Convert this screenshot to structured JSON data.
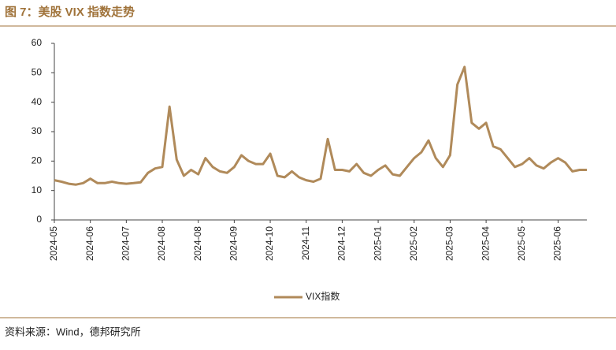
{
  "header": {
    "title": "图 7：美股 VIX 指数走势"
  },
  "chart_data": {
    "type": "line",
    "categories": [
      "2024-05",
      null,
      null,
      null,
      null,
      "2024-06",
      null,
      null,
      null,
      null,
      "2024-07",
      null,
      null,
      null,
      null,
      "2024-08",
      null,
      null,
      null,
      null,
      "2024-08",
      null,
      null,
      null,
      null,
      "2024-09",
      null,
      null,
      null,
      null,
      "2024-10",
      null,
      null,
      null,
      null,
      "2024-11",
      null,
      null,
      null,
      null,
      "2024-12",
      null,
      null,
      null,
      null,
      "2025-01",
      null,
      null,
      null,
      null,
      "2025-02",
      null,
      null,
      null,
      null,
      "2025-03",
      null,
      null,
      null,
      null,
      "2025-04",
      null,
      null,
      null,
      null,
      "2025-05",
      null,
      null,
      null,
      null,
      "2025-06",
      null,
      null,
      null,
      null
    ],
    "series": [
      {
        "name": "VIX指数",
        "color": "#b08a5a",
        "values": [
          13.5,
          13,
          12.3,
          12,
          12.5,
          14,
          12.5,
          12.5,
          13,
          12.5,
          12.3,
          12.5,
          12.8,
          16,
          17.5,
          18,
          38.5,
          20.5,
          15,
          17,
          15.5,
          21,
          18,
          16.5,
          16,
          18,
          22,
          20,
          19,
          19,
          22.5,
          15,
          14.5,
          16.5,
          14.5,
          13.5,
          13,
          14,
          27.5,
          17,
          17,
          16.5,
          19,
          16,
          15,
          17,
          18.5,
          15.5,
          15,
          18,
          21,
          23,
          27,
          21,
          18,
          22,
          46,
          52,
          33,
          31,
          33,
          25,
          24,
          21,
          18,
          19,
          21,
          18.5,
          17.5,
          19.5,
          21,
          19.5,
          16.5,
          17,
          17
        ]
      }
    ],
    "ylim": [
      0,
      60
    ],
    "yticks": [
      0,
      10,
      20,
      30,
      40,
      50,
      60
    ],
    "grid": false
  },
  "footer": {
    "source": "资料来源：Wind，德邦研究所"
  }
}
